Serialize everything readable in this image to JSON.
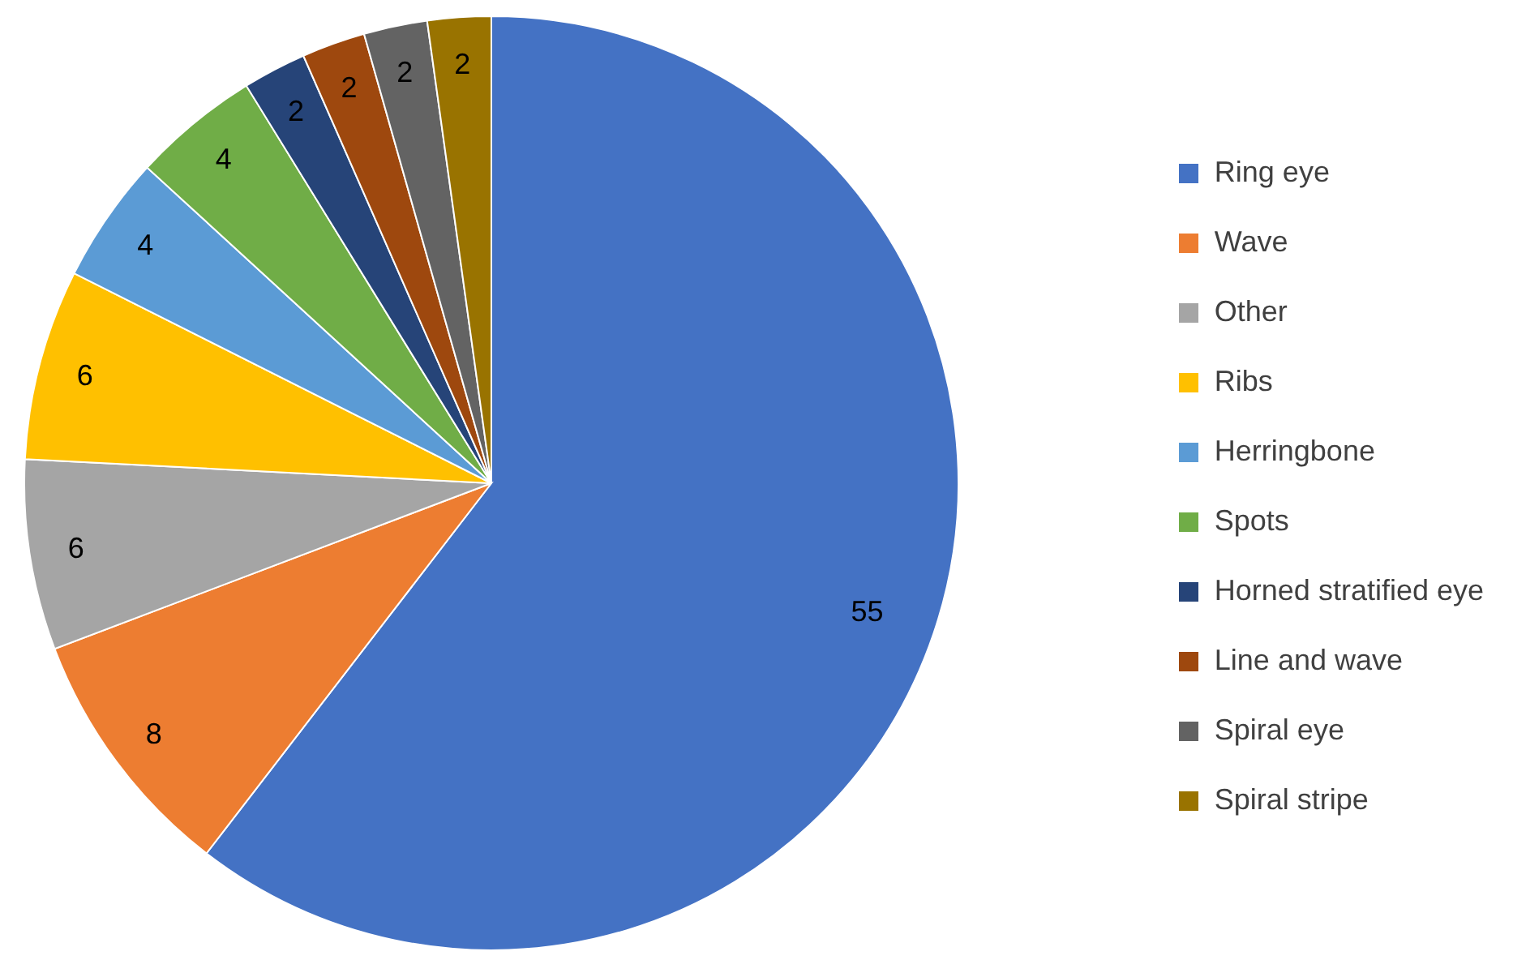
{
  "chart_data": {
    "type": "pie",
    "categories": [
      "Ring eye",
      "Wave",
      "Other",
      "Ribs",
      "Herringbone",
      "Spots",
      "Horned stratified eye",
      "Line and wave",
      "Spiral eye",
      "Spiral stripe"
    ],
    "values": [
      55,
      8,
      6,
      6,
      4,
      4,
      2,
      2,
      2,
      2
    ],
    "colors": [
      "#4472c4",
      "#ed7d31",
      "#a5a5a5",
      "#ffc000",
      "#5b9bd5",
      "#70ad47",
      "#264478",
      "#9e480e",
      "#636363",
      "#997300"
    ],
    "data_labels": true,
    "legend": "right"
  }
}
